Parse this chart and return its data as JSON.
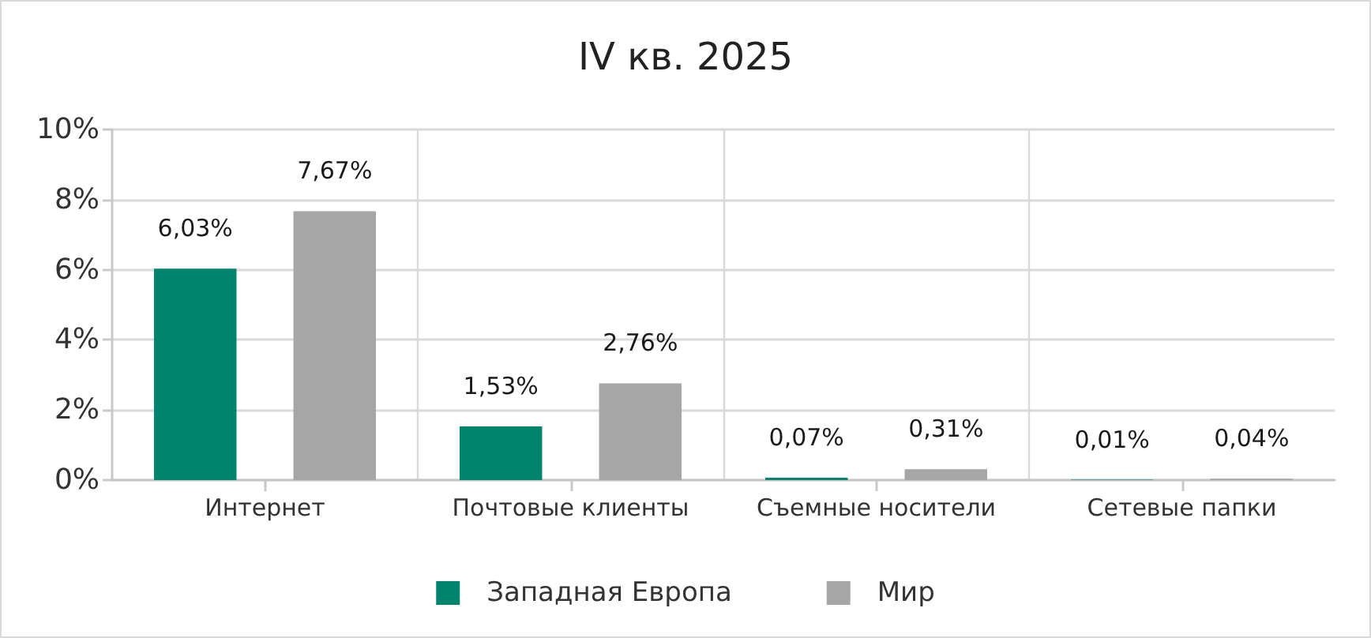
{
  "chart_data": {
    "type": "bar",
    "title": "IV кв. 2025",
    "categories": [
      "Интернет",
      "Почтовые клиенты",
      "Съемные носители",
      "Сетевые папки"
    ],
    "series": [
      {
        "name": "Западная Европа",
        "color": "#00846e",
        "values": [
          6.03,
          1.53,
          0.07,
          0.01
        ],
        "value_labels": [
          "6,03%",
          "1,53%",
          "0,07%",
          "0,01%"
        ]
      },
      {
        "name": "Мир",
        "color": "#a6a6a6",
        "values": [
          7.67,
          2.76,
          0.31,
          0.04
        ],
        "value_labels": [
          "7,67%",
          "2,76%",
          "0,31%",
          "0,04%"
        ]
      }
    ],
    "ylim": [
      0,
      10
    ],
    "yticks": [
      {
        "value": 0,
        "label": "0%"
      },
      {
        "value": 2,
        "label": "2%"
      },
      {
        "value": 4,
        "label": "4%"
      },
      {
        "value": 6,
        "label": "6%"
      },
      {
        "value": 8,
        "label": "8%"
      },
      {
        "value": 10,
        "label": "10%"
      }
    ],
    "grid": true,
    "legend": "bottom"
  }
}
